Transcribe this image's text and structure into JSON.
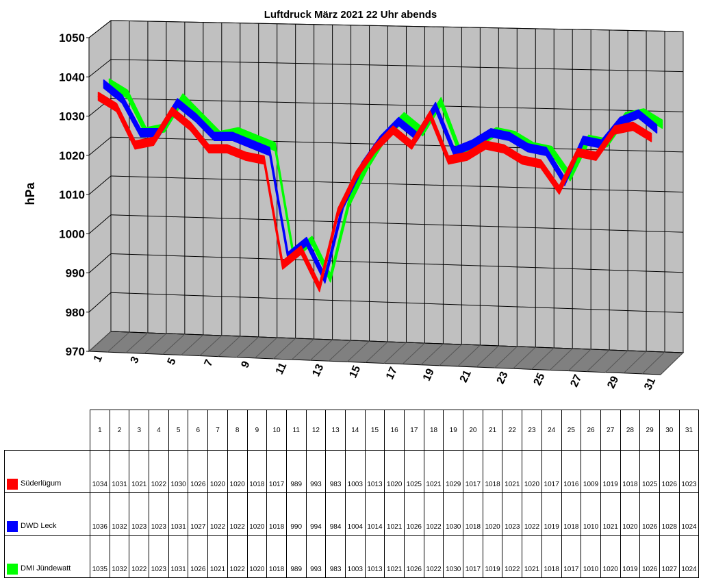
{
  "chart_data": {
    "type": "line",
    "style": "3d-ribbon",
    "title": "Luftdruck März 2021 22 Uhr abends",
    "ylabel": "hPa",
    "xlabel": "",
    "ylim": [
      970,
      1050
    ],
    "yticks": [
      970,
      980,
      990,
      1000,
      1010,
      1020,
      1030,
      1040,
      1050
    ],
    "xticks_shown": [
      1,
      3,
      5,
      7,
      9,
      11,
      13,
      15,
      17,
      19,
      21,
      23,
      25,
      27,
      29,
      31
    ],
    "grid": true,
    "categories": [
      "1",
      "2",
      "3",
      "4",
      "5",
      "6",
      "7",
      "8",
      "9",
      "10",
      "11",
      "12",
      "13",
      "14",
      "15",
      "16",
      "17",
      "18",
      "19",
      "20",
      "21",
      "22",
      "23",
      "24",
      "25",
      "26",
      "27",
      "28",
      "29",
      "30",
      "31"
    ],
    "series": [
      {
        "name": "Süderlügum",
        "color": "#ff0000",
        "values": [
          1034,
          1031,
          1021,
          1022,
          1030,
          1026,
          1020,
          1020,
          1018,
          1017,
          989,
          993,
          983,
          1003,
          1013,
          1020,
          1025,
          1021,
          1029,
          1017,
          1018,
          1021,
          1020,
          1017,
          1016,
          1009,
          1019,
          1018,
          1025,
          1026,
          1023
        ]
      },
      {
        "name": "DWD Leck",
        "color": "#0000ff",
        "values": [
          1036,
          1032,
          1023,
          1023,
          1031,
          1027,
          1022,
          1022,
          1020,
          1018,
          990,
          994,
          984,
          1004,
          1014,
          1021,
          1026,
          1022,
          1030,
          1018,
          1020,
          1023,
          1022,
          1019,
          1018,
          1010,
          1021,
          1020,
          1026,
          1028,
          1024
        ]
      },
      {
        "name": "DMI Jündewatt",
        "color": "#00ff00",
        "values": [
          1035,
          1032,
          1022,
          1023,
          1031,
          1026,
          1021,
          1022,
          1020,
          1018,
          989,
          993,
          983,
          1003,
          1013,
          1021,
          1026,
          1022,
          1030,
          1017,
          1019,
          1022,
          1021,
          1018,
          1017,
          1010,
          1020,
          1019,
          1026,
          1027,
          1024
        ]
      }
    ],
    "legend": "table-below"
  }
}
